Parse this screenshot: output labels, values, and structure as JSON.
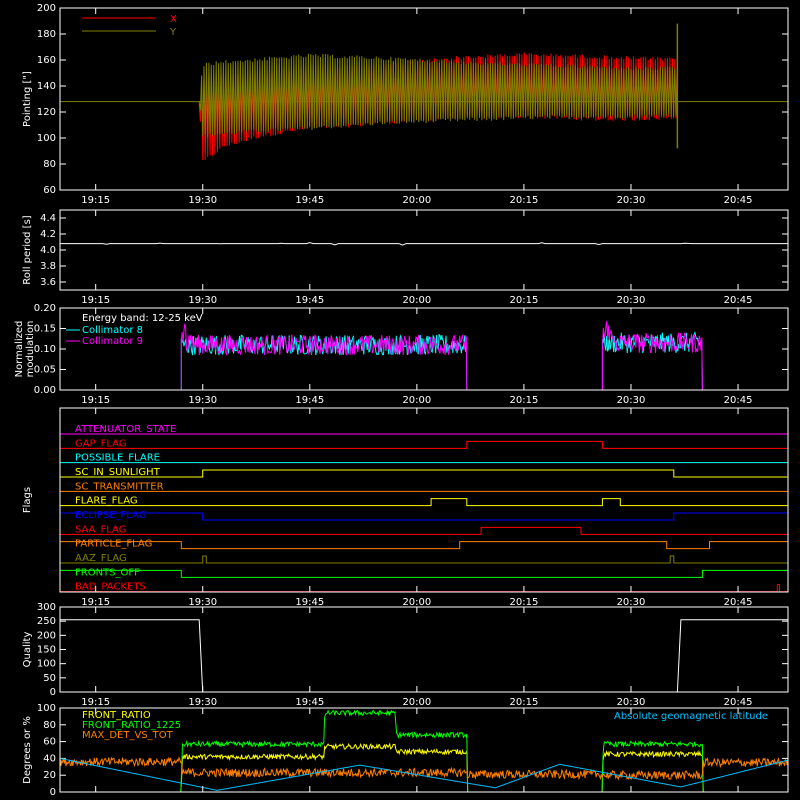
{
  "chart_data": [
    {
      "type": "line",
      "panel": "pointing",
      "ylabel": "Pointing [\"]",
      "ylim": [
        60,
        200
      ],
      "yticks": [
        60,
        80,
        100,
        120,
        140,
        160,
        180,
        200
      ],
      "xlim": [
        "19:10",
        "20:52"
      ],
      "xticks": [
        "19:15",
        "19:30",
        "19:45",
        "20:00",
        "20:15",
        "20:30",
        "20:45"
      ],
      "legend": "top-left",
      "series": [
        {
          "name": "X",
          "color": "#ff0000",
          "envelope": {
            "time": [
              "19:10",
              "19:29.5",
              "19:30",
              "19:33",
              "19:38",
              "19:45",
              "19:55",
              "20:05",
              "20:15",
              "20:25",
              "20:30",
              "20:36.5",
              "20:36.6",
              "20:52"
            ],
            "upper": [
              128,
              128,
              148,
              150,
              152,
              155,
              158,
              163,
              166,
              164,
              163,
              162,
              128,
              128
            ],
            "lower": [
              128,
              128,
              80,
              92,
              100,
              106,
              110,
              114,
              115,
              113,
              113,
              114,
              128,
              128
            ]
          }
        },
        {
          "name": "Y",
          "color": "#808000",
          "envelope": {
            "time": [
              "19:10",
              "19:29.5",
              "19:30",
              "19:33",
              "19:38",
              "19:45",
              "19:55",
              "20:05",
              "20:15",
              "20:25",
              "20:30",
              "20:36.5",
              "20:36.6",
              "20:52"
            ],
            "upper": [
              128,
              128,
              158,
              160,
              162,
              165,
              163,
              160,
              158,
              156,
              155,
              155,
              128,
              128
            ],
            "lower": [
              128,
              128,
              100,
              102,
              104,
              106,
              110,
              112,
              114,
              115,
              115,
              116,
              128,
              128
            ]
          }
        }
      ]
    },
    {
      "type": "line",
      "panel": "roll_period",
      "ylabel": "Roll period [s]",
      "ylim": [
        3.5,
        4.5
      ],
      "yticks": [
        "3.6",
        "3.8",
        "4.0",
        "4.2",
        "4.4"
      ],
      "series": [
        {
          "color": "#ffffff",
          "time": [
            "19:10",
            "20:52"
          ],
          "values": [
            4.08,
            4.08
          ]
        }
      ]
    },
    {
      "type": "line",
      "panel": "modulation",
      "ylabel": "Normalized modulation",
      "ylim": [
        0,
        0.2
      ],
      "yticks": [
        "0.00",
        "0.05",
        "0.10",
        "0.15",
        "0.20"
      ],
      "annotation": "Energy band: 12-25 keV",
      "series": [
        {
          "name": "Collimator 8",
          "color": "#00ffff",
          "segments": [
            {
              "start": "19:27",
              "end": "20:07",
              "mean": 0.11
            },
            {
              "start": "20:26",
              "end": "20:40",
              "mean": 0.115
            }
          ]
        },
        {
          "name": "Collimator 9",
          "color": "#ff00ff",
          "segments": [
            {
              "start": "19:27",
              "end": "20:07",
              "mean": 0.11
            },
            {
              "start": "20:26",
              "end": "20:40",
              "mean": 0.115
            }
          ]
        }
      ]
    },
    {
      "type": "line",
      "panel": "flags",
      "ylabel": "Flags",
      "flags": [
        {
          "name": "ATTENUATOR_STATE",
          "color": "#ff00ff",
          "on": []
        },
        {
          "name": "GAP_FLAG",
          "color": "#ff0000",
          "on": [
            [
              "20:07",
              "20:26"
            ]
          ]
        },
        {
          "name": "POSSIBLE_FLARE",
          "color": "#00ffff",
          "on": []
        },
        {
          "name": "SC_IN_SUNLIGHT",
          "color": "#ffff00",
          "on": [
            [
              "19:30",
              "20:36"
            ]
          ]
        },
        {
          "name": "SC_TRANSMITTER",
          "color": "#ff8000",
          "on": []
        },
        {
          "name": "FLARE_FLAG",
          "color": "#ffff00",
          "on": [
            [
              "20:02",
              "20:07"
            ],
            [
              "20:26",
              "20:28.5"
            ]
          ]
        },
        {
          "name": "ECLIPSE_FLAG",
          "color": "#0000ff",
          "on": [
            [
              "19:10",
              "19:30"
            ],
            [
              "20:36",
              "20:52"
            ]
          ]
        },
        {
          "name": "SAA_FLAG",
          "color": "#ff0000",
          "on": [
            [
              "20:09",
              "20:23"
            ]
          ]
        },
        {
          "name": "PARTICLE_FLAG",
          "color": "#ff8000",
          "on": [
            [
              "19:10",
              "19:27"
            ],
            [
              "20:06",
              "20:35"
            ],
            [
              "20:41",
              "20:52"
            ]
          ]
        },
        {
          "name": "AAZ_FLAG",
          "color": "#808000",
          "on": [
            [
              "19:30",
              "19:30.5"
            ],
            [
              "20:35.5",
              "20:36"
            ]
          ]
        },
        {
          "name": "FRONTS_OFF",
          "color": "#00ff00",
          "on": [
            [
              "19:10",
              "19:27"
            ],
            [
              "20:40",
              "20:52"
            ]
          ]
        },
        {
          "name": "BAD_PACKETS",
          "color": "#ff0000",
          "on": [
            [
              "20:50.5",
              "20:50.8"
            ]
          ]
        }
      ]
    },
    {
      "type": "line",
      "panel": "quality",
      "ylabel": "Quality",
      "ylim": [
        0,
        300
      ],
      "yticks": [
        "0",
        "50",
        "100",
        "150",
        "200",
        "250",
        "300"
      ],
      "series": [
        {
          "color": "#ffffff",
          "time": [
            "19:10",
            "19:29.5",
            "19:30",
            "20:36.5",
            "20:37",
            "20:52"
          ],
          "values": [
            255,
            255,
            0,
            0,
            255,
            255
          ]
        }
      ]
    },
    {
      "type": "line",
      "panel": "ratios",
      "ylabel": "Degrees or %",
      "ylim": [
        0,
        100
      ],
      "yticks": [
        "0",
        "20",
        "40",
        "60",
        "80",
        "100"
      ],
      "legend": "top-left",
      "series": [
        {
          "name": "FRONT_RATIO",
          "color": "#ffff00",
          "time": [
            "19:10",
            "19:27",
            "19:27.1",
            "19:47",
            "19:47.1",
            "19:57",
            "19:57.1",
            "20:07",
            "20:07.1",
            "20:26",
            "20:26.1",
            "20:40",
            "20:40.1",
            "20:52"
          ],
          "values": [
            0,
            0,
            42,
            42,
            54,
            54,
            48,
            48,
            0,
            0,
            45,
            45,
            0,
            0
          ]
        },
        {
          "name": "FRONT_RATIO_1225",
          "color": "#00ff00",
          "time": [
            "19:10",
            "19:27",
            "19:27.1",
            "19:47",
            "19:47.1",
            "19:57",
            "19:57.1",
            "20:07",
            "20:07.1",
            "20:26",
            "20:26.1",
            "20:40",
            "20:40.1",
            "20:52"
          ],
          "values": [
            0,
            0,
            57,
            57,
            94,
            94,
            68,
            68,
            0,
            0,
            57,
            57,
            0,
            0
          ]
        },
        {
          "name": "MAX_DET_VS_TOT",
          "color": "#ff8000",
          "time": [
            "19:10",
            "19:27",
            "19:27.1",
            "20:07",
            "20:07.1",
            "20:26",
            "20:26.1",
            "20:40",
            "20:40.1",
            "20:52"
          ],
          "values": [
            36,
            36,
            23,
            23,
            21,
            21,
            20,
            20,
            35,
            35
          ]
        },
        {
          "name": "Absolute geomagnetic latitude",
          "color": "#00c0ff",
          "time": [
            "19:10",
            "19:32",
            "19:52",
            "20:11",
            "20:20",
            "20:37",
            "20:52"
          ],
          "values": [
            40,
            2,
            32,
            5,
            33,
            6,
            38
          ]
        }
      ]
    }
  ]
}
